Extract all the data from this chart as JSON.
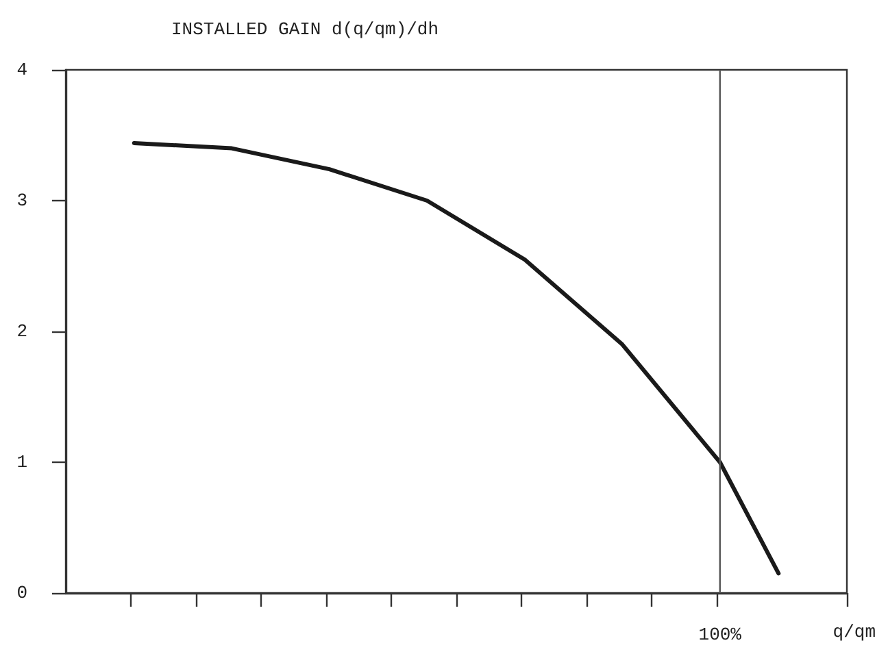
{
  "chart_data": {
    "type": "line",
    "title": "INSTALLED GAIN d(q/qm)/dh",
    "xlabel": "q/qm",
    "categories": [
      null,
      null,
      null,
      null,
      null,
      null,
      null,
      null,
      null,
      null,
      null,
      null,
      null,
      null,
      null,
      null,
      null,
      null,
      null,
      null,
      null,
      null,
      null,
      null,
      null,
      null,
      null,
      null,
      null,
      null,
      null,
      null,
      null,
      null,
      null,
      null,
      null,
      null,
      null,
      null,
      null,
      null,
      null,
      null,
      null,
      null,
      null,
      null,
      null,
      null,
      null,
      null,
      null,
      null,
      null,
      null,
      null,
      null,
      null,
      null,
      null,
      null,
      null,
      null,
      null,
      null,
      null,
      null,
      null,
      null,
      null,
      null,
      null,
      null,
      null,
      null,
      null,
      null,
      null,
      null,
      null,
      null,
      null,
      null,
      null,
      null,
      null,
      null,
      null,
      null,
      null,
      null,
      null,
      null,
      null,
      null,
      null,
      null,
      null,
      null,
      "100%",
      null,
      null,
      null,
      null,
      null,
      null,
      null,
      null,
      null,
      null,
      null,
      null,
      null,
      null,
      null,
      null,
      null,
      null,
      null
    ],
    "series": [
      {
        "color": "#1a1a1a",
        "values": [
          null,
          null,
          null,
          null,
          null,
          null,
          null,
          null,
          null,
          null,
          3.44,
          null,
          null,
          null,
          null,
          null,
          null,
          null,
          null,
          null,
          null,
          null,
          null,
          null,
          null,
          3.4,
          null,
          null,
          null,
          null,
          null,
          null,
          null,
          null,
          null,
          null,
          null,
          null,
          null,
          null,
          3.24,
          null,
          null,
          null,
          null,
          null,
          null,
          null,
          null,
          null,
          null,
          null,
          null,
          null,
          null,
          3.0,
          null,
          null,
          null,
          null,
          null,
          null,
          null,
          null,
          null,
          null,
          null,
          null,
          null,
          null,
          2.55,
          null,
          null,
          null,
          null,
          null,
          null,
          null,
          null,
          null,
          null,
          null,
          null,
          null,
          null,
          1.9,
          null,
          null,
          null,
          null,
          null,
          null,
          null,
          null,
          null,
          null,
          null,
          null,
          null,
          null,
          1.0,
          null,
          null,
          null,
          null,
          null,
          null,
          null,
          null,
          0.15,
          null,
          null,
          null,
          null,
          null,
          null,
          null,
          null,
          null,
          null
        ]
      }
    ],
    "ylim": [
      0,
      4
    ],
    "yticks": [
      0,
      1,
      2,
      3,
      4
    ],
    "ref_lines": [
      {
        "axis": "x",
        "value": "100%",
        "color": "#555555"
      }
    ],
    "grid": false,
    "marker": "none",
    "line_style": "solid"
  }
}
